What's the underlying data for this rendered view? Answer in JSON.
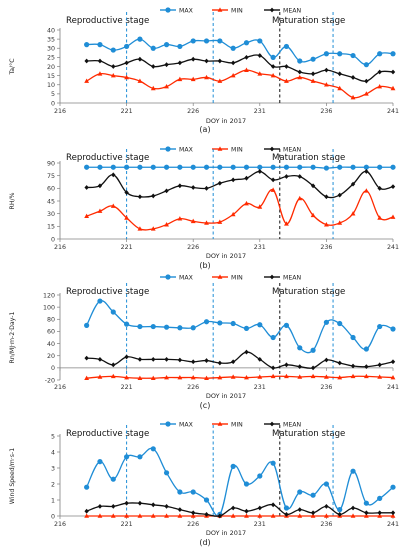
{
  "colors": {
    "max": "#1f8dd6",
    "min": "#ff2a00",
    "mean": "#111111",
    "stageLineBlue": "#1f8dd6",
    "stageLineBlack": "#111111",
    "axis": "#808080"
  },
  "chart_data": [
    {
      "type": "line",
      "caption": "(a)",
      "ylabel": "Ta/°C",
      "xlabel": "DOY in 2017",
      "stage_left": "Reproductive stage",
      "stage_right": "Maturation stage",
      "ylim": [
        0,
        40
      ],
      "yticks": [
        0,
        5,
        10,
        15,
        20,
        25,
        30,
        35,
        40
      ],
      "xlim": [
        216,
        241
      ],
      "xticks": [
        216,
        221,
        226,
        231,
        236,
        241
      ],
      "stage_lines": [
        {
          "x": 221,
          "color": "blue"
        },
        {
          "x": 227.5,
          "color": "blue"
        },
        {
          "x": 232.5,
          "color": "black"
        },
        {
          "x": 236.5,
          "color": "blue"
        }
      ],
      "legend": [
        "MAX",
        "MIN",
        "MEAN"
      ],
      "series": [
        {
          "name": "MAX",
          "marker": "circle",
          "x": [
            218,
            219,
            220,
            221,
            222,
            223,
            224,
            225,
            226,
            227,
            228,
            229,
            230,
            231,
            232,
            233,
            234,
            235,
            236,
            237,
            238,
            239,
            240,
            241
          ],
          "values": [
            32,
            32,
            29,
            31,
            35,
            30,
            32,
            31,
            34,
            34,
            34,
            30,
            33,
            34,
            25,
            31,
            23,
            24,
            27,
            27,
            26,
            21,
            27,
            27
          ]
        },
        {
          "name": "MIN",
          "marker": "triangle",
          "x": [
            218,
            219,
            220,
            221,
            222,
            223,
            224,
            225,
            226,
            227,
            228,
            229,
            230,
            231,
            232,
            233,
            234,
            235,
            236,
            237,
            238,
            239,
            240,
            241
          ],
          "values": [
            12,
            16,
            15,
            14,
            12,
            8,
            9,
            13,
            13,
            14,
            12,
            15,
            18,
            16,
            15,
            12,
            14,
            12,
            10,
            8,
            3,
            5,
            9,
            8
          ]
        },
        {
          "name": "MEAN",
          "marker": "diamond",
          "x": [
            218,
            219,
            220,
            221,
            222,
            223,
            224,
            225,
            226,
            227,
            228,
            229,
            230,
            231,
            232,
            233,
            234,
            235,
            236,
            237,
            238,
            239,
            240,
            241
          ],
          "values": [
            23,
            23,
            20,
            22,
            24,
            20,
            21,
            22,
            24,
            23,
            23,
            22,
            25,
            26,
            20,
            20,
            17,
            16,
            18,
            16,
            14,
            12,
            17,
            17
          ]
        }
      ]
    },
    {
      "type": "line",
      "caption": "(b)",
      "ylabel": "RH/%",
      "xlabel": "DOY in 2017",
      "stage_left": "Reproductive stage",
      "stage_right": "Maturation stage",
      "ylim": [
        0,
        90
      ],
      "yticks": [
        0,
        15,
        30,
        45,
        60,
        75,
        90
      ],
      "xlim": [
        216,
        241
      ],
      "xticks": [
        216,
        221,
        226,
        231,
        236,
        241
      ],
      "stage_lines": [
        {
          "x": 221,
          "color": "blue"
        },
        {
          "x": 227.5,
          "color": "blue"
        },
        {
          "x": 232.5,
          "color": "black"
        },
        {
          "x": 236.5,
          "color": "blue"
        }
      ],
      "legend": [
        "MAX",
        "MIN",
        "MEAN"
      ],
      "series": [
        {
          "name": "MAX",
          "marker": "circle",
          "x": [
            218,
            219,
            220,
            221,
            222,
            223,
            224,
            225,
            226,
            227,
            228,
            229,
            230,
            231,
            232,
            233,
            234,
            235,
            236,
            237,
            238,
            239,
            240,
            241
          ],
          "values": [
            85,
            85,
            85,
            85,
            85,
            85,
            85,
            85,
            85,
            85,
            85,
            85,
            85,
            85,
            85,
            85,
            85,
            85,
            84,
            85,
            85,
            85,
            85,
            85
          ]
        },
        {
          "name": "MIN",
          "marker": "triangle",
          "x": [
            218,
            219,
            220,
            221,
            222,
            223,
            224,
            225,
            226,
            227,
            228,
            229,
            230,
            231,
            232,
            233,
            234,
            235,
            236,
            237,
            238,
            239,
            240,
            241
          ],
          "values": [
            27,
            33,
            39,
            25,
            12,
            12,
            17,
            24,
            21,
            19,
            20,
            29,
            42,
            38,
            58,
            18,
            48,
            28,
            17,
            19,
            30,
            57,
            25,
            26
          ]
        },
        {
          "name": "MEAN",
          "marker": "diamond",
          "x": [
            218,
            219,
            220,
            221,
            222,
            223,
            224,
            225,
            226,
            227,
            228,
            229,
            230,
            231,
            232,
            233,
            234,
            235,
            236,
            237,
            238,
            239,
            240,
            241
          ],
          "values": [
            61,
            63,
            76,
            55,
            50,
            51,
            57,
            63,
            61,
            60,
            66,
            70,
            72,
            80,
            70,
            74,
            74,
            63,
            50,
            52,
            65,
            80,
            60,
            62
          ]
        }
      ]
    },
    {
      "type": "line",
      "caption": "(c)",
      "ylabel": "Rn/MJ·m-2·Day-1",
      "xlabel": "DOY in 2017",
      "stage_left": "Reproductive stage",
      "stage_right": "Maturation stage",
      "ylim": [
        -20,
        120
      ],
      "yticks": [
        -20,
        0,
        20,
        40,
        60,
        80,
        100,
        120
      ],
      "xlim": [
        216,
        241
      ],
      "xticks": [
        216,
        221,
        226,
        231,
        236,
        241
      ],
      "stage_lines": [
        {
          "x": 221,
          "color": "blue"
        },
        {
          "x": 227.5,
          "color": "blue"
        },
        {
          "x": 232.5,
          "color": "black"
        },
        {
          "x": 236.5,
          "color": "blue"
        }
      ],
      "legend": [
        "MAX",
        "MIN",
        "MEAN"
      ],
      "series": [
        {
          "name": "MAX",
          "marker": "circle",
          "x": [
            218,
            219,
            220,
            221,
            222,
            223,
            224,
            225,
            226,
            227,
            228,
            229,
            230,
            231,
            232,
            233,
            234,
            235,
            236,
            237,
            238,
            239,
            240,
            241
          ],
          "values": [
            70,
            110,
            92,
            72,
            68,
            68,
            67,
            66,
            66,
            76,
            74,
            73,
            65,
            71,
            50,
            70,
            33,
            29,
            75,
            73,
            50,
            31,
            68,
            64
          ]
        },
        {
          "name": "MIN",
          "marker": "triangle",
          "x": [
            218,
            219,
            220,
            221,
            222,
            223,
            224,
            225,
            226,
            227,
            228,
            229,
            230,
            231,
            232,
            233,
            234,
            235,
            236,
            237,
            238,
            239,
            240,
            241
          ],
          "values": [
            -17,
            -15,
            -14,
            -16,
            -17,
            -17,
            -16,
            -16,
            -16,
            -17,
            -16,
            -15,
            -16,
            -15,
            -14,
            -14,
            -15,
            -14,
            -15,
            -16,
            -14,
            -14,
            -15,
            -16
          ]
        },
        {
          "name": "MEAN",
          "marker": "diamond",
          "x": [
            218,
            219,
            220,
            221,
            222,
            223,
            224,
            225,
            226,
            227,
            228,
            229,
            230,
            231,
            232,
            233,
            234,
            235,
            236,
            237,
            238,
            239,
            240,
            241
          ],
          "values": [
            16,
            14,
            5,
            18,
            14,
            14,
            14,
            13,
            10,
            12,
            8,
            10,
            26,
            14,
            0,
            5,
            2,
            0,
            13,
            8,
            3,
            2,
            5,
            10
          ]
        }
      ]
    },
    {
      "type": "line",
      "caption": "(d)",
      "ylabel": "Wind Speed/m·s-1",
      "xlabel": "DOY in 2017",
      "stage_left": "Reproductive stage",
      "stage_right": "Maturation stage",
      "ylim": [
        0,
        5
      ],
      "yticks": [
        0,
        1,
        2,
        3,
        4,
        5
      ],
      "xlim": [
        216,
        241
      ],
      "xticks": [
        216,
        221,
        226,
        231,
        236,
        241
      ],
      "stage_lines": [
        {
          "x": 221,
          "color": "blue"
        },
        {
          "x": 227.5,
          "color": "blue"
        },
        {
          "x": 232.5,
          "color": "black"
        },
        {
          "x": 236.5,
          "color": "blue"
        }
      ],
      "legend": [
        "MAX",
        "MIN",
        "MEAN"
      ],
      "series": [
        {
          "name": "MAX",
          "marker": "circle",
          "x": [
            218,
            219,
            220,
            221,
            222,
            223,
            224,
            225,
            226,
            227,
            228,
            229,
            230,
            231,
            232,
            233,
            234,
            235,
            236,
            237,
            238,
            239,
            240,
            241
          ],
          "values": [
            1.8,
            3.4,
            2.3,
            3.7,
            3.7,
            4.2,
            2.7,
            1.5,
            1.5,
            1.0,
            0.1,
            3.1,
            2.0,
            2.5,
            3.3,
            0.5,
            1.5,
            1.3,
            2.0,
            0.4,
            2.8,
            0.8,
            1.1,
            1.8
          ]
        },
        {
          "name": "MIN",
          "marker": "triangle",
          "x": [
            218,
            219,
            220,
            221,
            222,
            223,
            224,
            225,
            226,
            227,
            228,
            229,
            230,
            231,
            232,
            233,
            234,
            235,
            236,
            237,
            238,
            239,
            240,
            241
          ],
          "values": [
            0,
            0,
            0,
            0,
            0,
            0,
            0,
            0,
            0,
            0,
            0,
            0,
            0,
            0,
            0,
            0,
            0,
            0,
            0,
            0,
            0,
            0,
            0,
            0
          ]
        },
        {
          "name": "MEAN",
          "marker": "diamond",
          "x": [
            218,
            219,
            220,
            221,
            222,
            223,
            224,
            225,
            226,
            227,
            228,
            229,
            230,
            231,
            232,
            233,
            234,
            235,
            236,
            237,
            238,
            239,
            240,
            241
          ],
          "values": [
            0.3,
            0.6,
            0.6,
            0.8,
            0.8,
            0.7,
            0.6,
            0.4,
            0.2,
            0.1,
            0.0,
            0.5,
            0.3,
            0.5,
            0.7,
            0.1,
            0.4,
            0.2,
            0.6,
            0.1,
            0.5,
            0.2,
            0.2,
            0.2
          ]
        }
      ]
    }
  ]
}
